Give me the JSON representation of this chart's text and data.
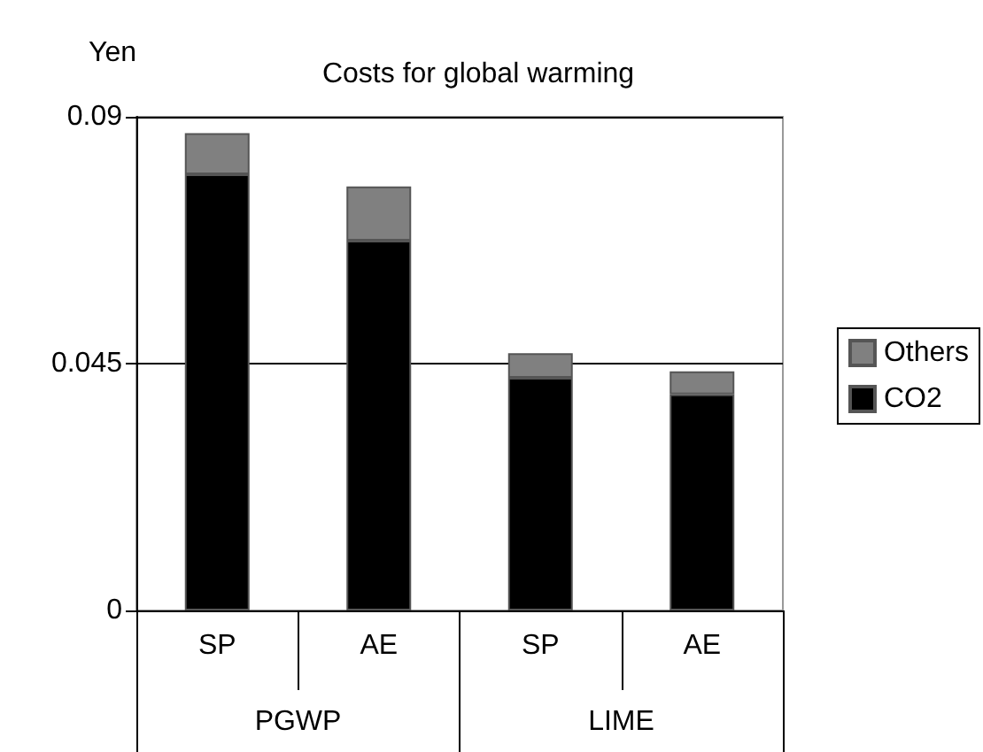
{
  "chart_data": {
    "type": "bar",
    "title": "Costs for global warming",
    "ylabel": "Yen",
    "categories": [
      "SP",
      "AE",
      "SP",
      "AE"
    ],
    "annotations": [
      "PGWP",
      "LIME"
    ],
    "series": [
      {
        "name": "CO2",
        "color": "#000000",
        "values": [
          0.0795,
          0.0674,
          0.0424,
          0.0394
        ]
      },
      {
        "name": "Others",
        "color": "#808080",
        "values": [
          0.0075,
          0.0099,
          0.0045,
          0.0042
        ]
      }
    ],
    "stacked": true,
    "ylim": [
      0,
      0.09
    ],
    "yticks": [
      0,
      0.045,
      0.09
    ],
    "grid": "y",
    "legend": "right"
  }
}
